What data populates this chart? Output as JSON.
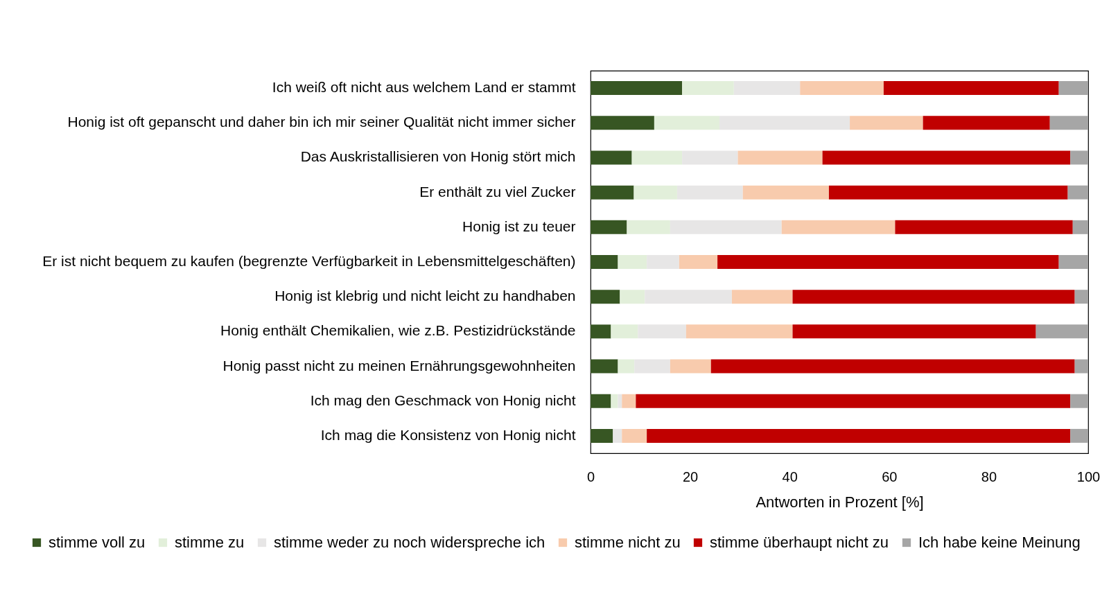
{
  "chart_data": {
    "type": "bar",
    "orientation": "horizontal",
    "stacked": true,
    "categories": [
      "Ich weiß oft nicht aus welchem Land er stammt",
      "Honig ist oft gepanscht und daher bin ich mir seiner Qualität nicht immer sicher",
      "Das Auskristallisieren von Honig stört mich",
      "Er enthält zu viel Zucker",
      "Honig ist zu teuer",
      "Er ist nicht bequem zu kaufen (begrenzte Verfügbarkeit in Lebensmittelgeschäften)",
      "Honig ist klebrig und nicht leicht zu handhaben",
      "Honig enthält  Chemikalien, wie z.B. Pestizidrückstände",
      "Honig passt nicht zu meinen Ernährungsgewohnheiten",
      "Ich mag den Geschmack von Honig nicht",
      "Ich mag die Konsistenz von Honig nicht"
    ],
    "series": [
      {
        "name": "stimme voll zu",
        "color": "#375623",
        "values": [
          18.4,
          12.8,
          8.3,
          8.7,
          7.3,
          5.5,
          5.9,
          4.1,
          5.5,
          4.1,
          4.5
        ]
      },
      {
        "name": "stimme zu",
        "color": "#e2efda",
        "values": [
          10.4,
          13.1,
          10.1,
          8.7,
          8.7,
          5.8,
          5.0,
          5.4,
          3.3,
          1.4,
          0
        ]
      },
      {
        "name": "stimme weder zu noch widerspreche ich",
        "color": "#e7e6e6",
        "values": [
          13.3,
          26.2,
          11.2,
          13.2,
          22.4,
          6.5,
          17.5,
          9.7,
          7.2,
          0.8,
          1.8
        ]
      },
      {
        "name": "stimme nicht zu",
        "color": "#f8cbad",
        "values": [
          16.8,
          14.7,
          17.0,
          17.3,
          22.8,
          7.7,
          12.2,
          21.4,
          8.2,
          2.8,
          5.0
        ]
      },
      {
        "name": "stimme überhaupt nicht zu",
        "color": "#c00000",
        "values": [
          35.2,
          25.5,
          49.8,
          48.0,
          35.7,
          68.6,
          56.7,
          48.9,
          73.1,
          87.3,
          85.1
        ]
      },
      {
        "name": "Ich habe keine Meinung",
        "color": "#a6a6a6",
        "values": [
          5.9,
          7.7,
          3.6,
          4.1,
          3.1,
          5.9,
          2.7,
          10.5,
          2.7,
          3.6,
          3.6
        ]
      }
    ],
    "xlim": [
      0,
      100
    ],
    "xticks": [
      0,
      20,
      40,
      60,
      80,
      100
    ],
    "xlabel": "Antworten in Prozent [%]",
    "legend": "bottom",
    "grid": false
  }
}
